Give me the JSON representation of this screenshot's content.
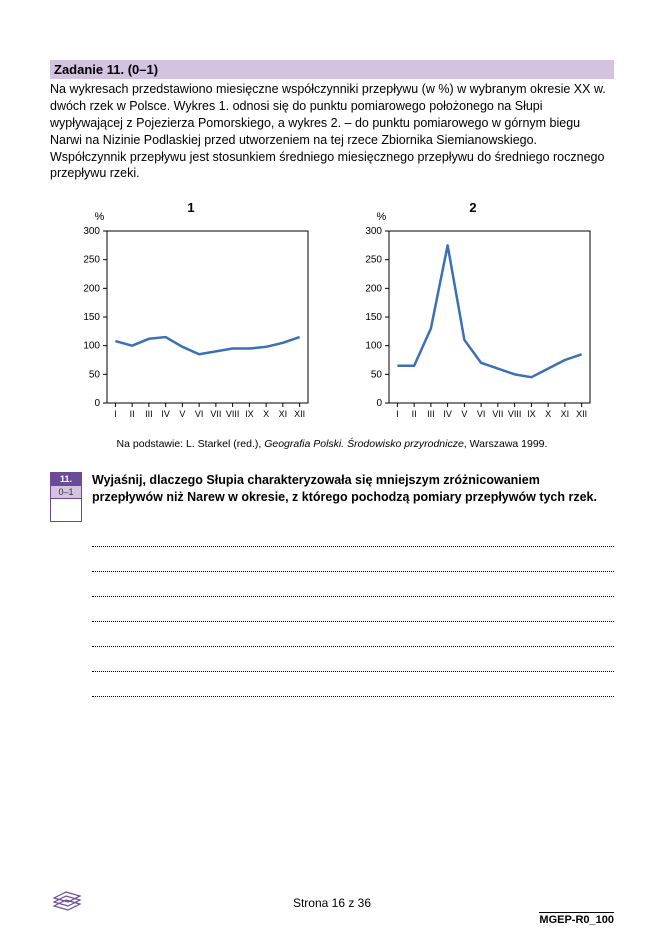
{
  "task": {
    "header": "Zadanie 11. (0–1)",
    "body": "Na wykresach przedstawiono miesięczne współczynniki przepływu (w %) w wybranym okresie XX w. dwóch rzek w Polsce. Wykres 1. odnosi się do punktu pomiarowego położonego na Słupi wypływającej z Pojezierza Pomorskiego, a wykres 2. – do punktu pomiarowego w górnym biegu Narwi na Nizinie Podlaskiej przed utworzeniem na tej rzece Zbiornika Siemianowskiego. Współczynnik przepływu jest stosunkiem średniego miesięcznego przepływu do średniego rocznego przepływu rzeki."
  },
  "charts": {
    "y_label": "%",
    "y_ticks": [
      0,
      50,
      100,
      150,
      200,
      250,
      300
    ],
    "x_ticks": [
      "I",
      "II",
      "III",
      "IV",
      "V",
      "VI",
      "VII",
      "VIII",
      "IX",
      "X",
      "XI",
      "XII"
    ],
    "ylim": [
      0,
      300
    ],
    "line_color": "#3b6fb6",
    "axis_color": "#000000",
    "grid_color": "#000000",
    "line_width": 2.5,
    "chart1": {
      "title": "1",
      "values": [
        108,
        100,
        112,
        115,
        98,
        85,
        90,
        95,
        95,
        98,
        105,
        115
      ]
    },
    "chart2": {
      "title": "2",
      "values": [
        65,
        65,
        130,
        275,
        110,
        70,
        60,
        50,
        45,
        60,
        75,
        85
      ]
    }
  },
  "citation": {
    "prefix": "Na podstawie: L. Starkel (red.), ",
    "italic": "Geografia Polski. Środowisko przyrodnicze",
    "suffix": ", Warszawa 1999."
  },
  "score": {
    "num": "11.",
    "range": "0–1"
  },
  "question": "Wyjaśnij, dlaczego Słupia charakteryzowała się mniejszym zróżnicowaniem przepływów niż Narew w okresie, z którego pochodzą pomiary przepływów tych rzek.",
  "answer_line_count": 7,
  "footer": {
    "page": "Strona 16 z 36",
    "doc_id": "MGEP-R0_100"
  }
}
